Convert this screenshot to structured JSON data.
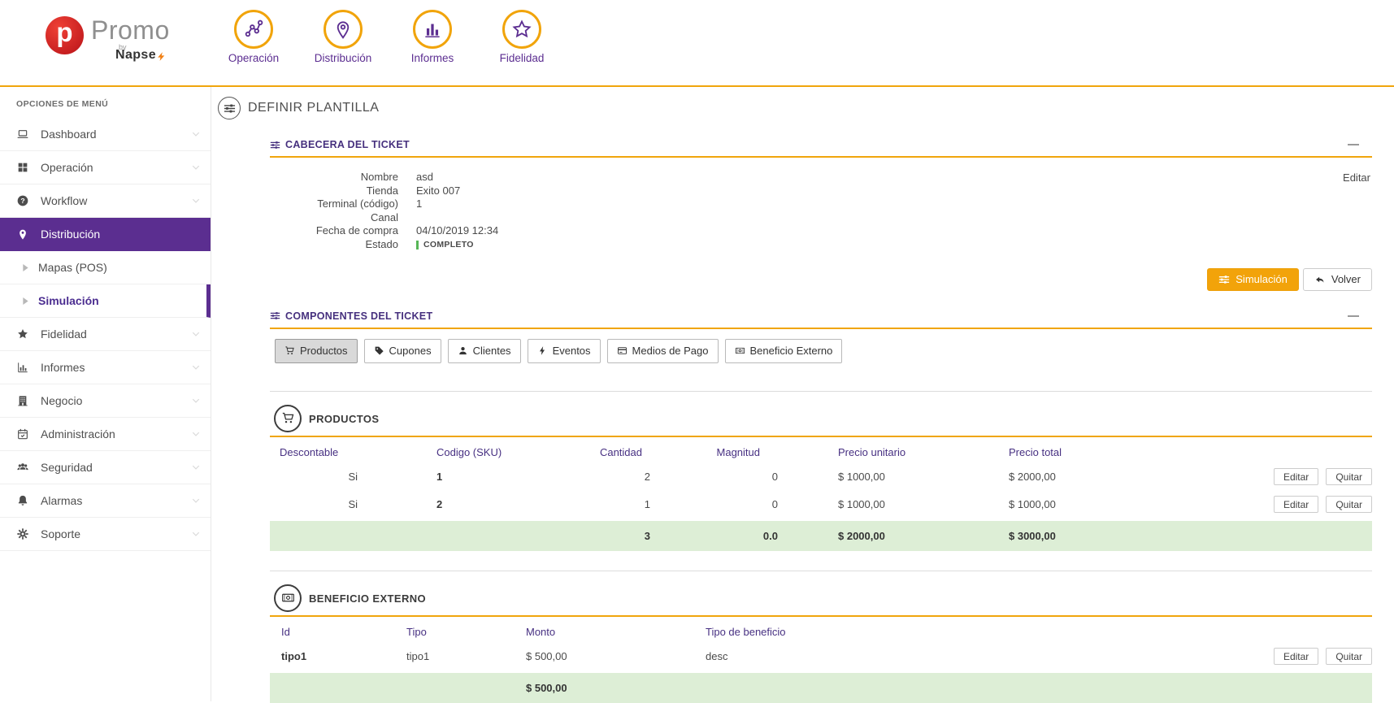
{
  "brand": {
    "logo_letter": "p",
    "name": "Promo",
    "by": "by",
    "company": "Napse"
  },
  "top_nav": {
    "items": [
      {
        "label": "Operación",
        "icon": "network"
      },
      {
        "label": "Distribución",
        "icon": "map-pin"
      },
      {
        "label": "Informes",
        "icon": "bar-chart"
      },
      {
        "label": "Fidelidad",
        "icon": "star-outline"
      }
    ]
  },
  "sidebar": {
    "heading": "OPCIONES DE MENÚ",
    "items": [
      {
        "label": "Dashboard",
        "icon": "laptop",
        "chevron": true
      },
      {
        "label": "Operación",
        "icon": "grid",
        "chevron": true
      },
      {
        "label": "Workflow",
        "icon": "question-circle",
        "chevron": true
      },
      {
        "label": "Distribución",
        "icon": "map-pin",
        "active": true
      },
      {
        "label": "Mapas (POS)",
        "icon": "caret-right",
        "sub": true
      },
      {
        "label": "Simulación",
        "icon": "caret-right",
        "sub": true,
        "selected": true
      },
      {
        "label": "Fidelidad",
        "icon": "star",
        "chevron": true
      },
      {
        "label": "Informes",
        "icon": "bar-chart-axis",
        "chevron": true
      },
      {
        "label": "Negocio",
        "icon": "building",
        "chevron": true
      },
      {
        "label": "Administración",
        "icon": "calendar-check",
        "chevron": true
      },
      {
        "label": "Seguridad",
        "icon": "users",
        "chevron": true
      },
      {
        "label": "Alarmas",
        "icon": "bell",
        "chevron": true
      },
      {
        "label": "Soporte",
        "icon": "gear",
        "chevron": true
      }
    ]
  },
  "page": {
    "title": "DEFINIR PLANTILLA"
  },
  "cabecera": {
    "title": "CABECERA DEL TICKET",
    "edit_label": "Editar",
    "fields": [
      {
        "label": "Nombre",
        "value": "asd"
      },
      {
        "label": "Tienda",
        "value": "Exito 007"
      },
      {
        "label": "Terminal (código)",
        "value": "1"
      },
      {
        "label": "Canal",
        "value": ""
      },
      {
        "label": "Fecha de compra",
        "value": "04/10/2019 12:34"
      },
      {
        "label": "Estado",
        "value": "COMPLETO",
        "status": true
      }
    ],
    "buttons": {
      "simulacion": "Simulación",
      "volver": "Volver"
    }
  },
  "componentes": {
    "title": "COMPONENTES DEL TICKET",
    "tabs": [
      {
        "label": "Productos",
        "icon": "cart",
        "active": true
      },
      {
        "label": "Cupones",
        "icon": "tag"
      },
      {
        "label": "Clientes",
        "icon": "user"
      },
      {
        "label": "Eventos",
        "icon": "bolt"
      },
      {
        "label": "Medios de Pago",
        "icon": "credit-card"
      },
      {
        "label": "Beneficio Externo",
        "icon": "banknote"
      }
    ]
  },
  "productos": {
    "title": "PRODUCTOS",
    "columns": [
      "Descontable",
      "Codigo (SKU)",
      "Cantidad",
      "Magnitud",
      "Precio unitario",
      "Precio total"
    ],
    "rows": [
      {
        "descontable": "Si",
        "codigo": "1",
        "cantidad": "2",
        "magnitud": "0",
        "precio_unitario": "$ 1000,00",
        "precio_total": "$ 2000,00"
      },
      {
        "descontable": "Si",
        "codigo": "2",
        "cantidad": "1",
        "magnitud": "0",
        "precio_unitario": "$ 1000,00",
        "precio_total": "$ 1000,00"
      }
    ],
    "totals": {
      "cantidad": "3",
      "magnitud": "0.0",
      "precio_unitario": "$ 2000,00",
      "precio_total": "$ 3000,00"
    },
    "row_actions": {
      "edit": "Editar",
      "remove": "Quitar"
    }
  },
  "beneficio": {
    "title": "BENEFICIO EXTERNO",
    "columns": [
      "Id",
      "Tipo",
      "Monto",
      "Tipo de beneficio"
    ],
    "rows": [
      {
        "id": "tipo1",
        "tipo": "tipo1",
        "monto": "$ 500,00",
        "tipo_beneficio": "desc"
      }
    ],
    "totals": {
      "monto": "$ 500,00"
    },
    "row_actions": {
      "edit": "Editar",
      "remove": "Quitar"
    }
  },
  "colors": {
    "accent_orange": "#f0a50c",
    "brand_purple": "#5c2e91",
    "sidebar_active_purple": "#5b2e90",
    "status_green": "#57b657",
    "total_row_green": "#ddeed6"
  }
}
